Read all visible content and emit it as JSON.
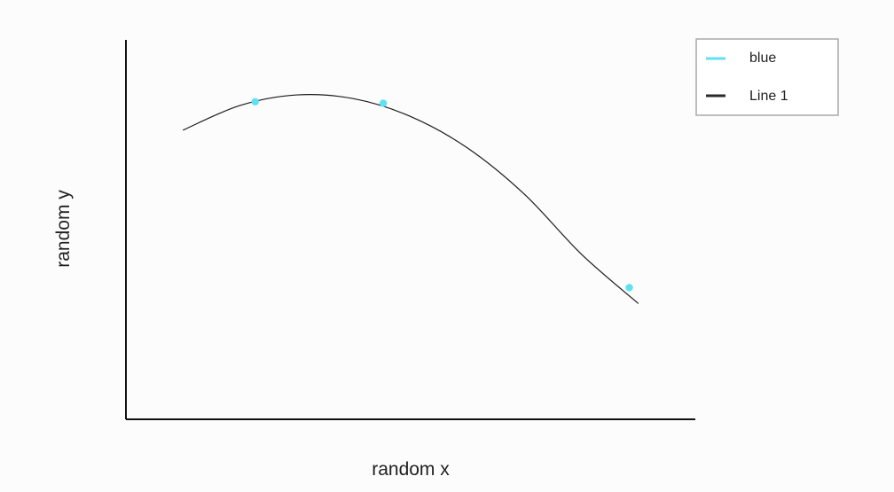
{
  "chart_data": {
    "type": "line",
    "xlabel": "random x",
    "ylabel": "random y",
    "xlim": [
      0,
      10
    ],
    "ylim": [
      0,
      10
    ],
    "grid": false,
    "legend": "top-right",
    "series": [
      {
        "name": "blue",
        "kind": "scatter",
        "color": "#5fe1f2",
        "x": [
          2.27,
          4.52,
          8.84
        ],
        "y": [
          8.37,
          8.33,
          3.47
        ]
      },
      {
        "name": "Line 1",
        "kind": "line",
        "color": "#1b1b1b",
        "x": [
          1.0,
          2.0,
          3.0,
          4.0,
          5.0,
          6.0,
          7.0,
          8.0,
          9.0
        ],
        "y": [
          7.62,
          8.27,
          8.55,
          8.45,
          7.98,
          7.15,
          5.93,
          4.35,
          3.05
        ]
      }
    ]
  }
}
